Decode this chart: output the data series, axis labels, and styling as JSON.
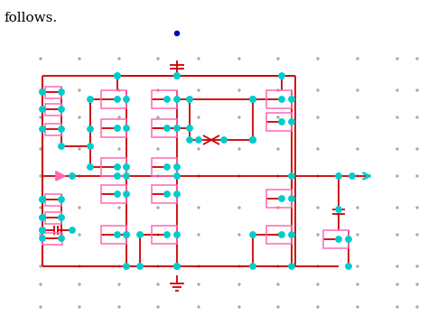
{
  "bg": "#ffffff",
  "wc": "#cc0000",
  "nc": "#00cccc",
  "cc": "#ff69b4",
  "gc": "#aaaaaa",
  "dc": "#330000",
  "blue": "#0000bb",
  "figsize": [
    4.74,
    3.6
  ],
  "dpi": 100,
  "title": "follows."
}
